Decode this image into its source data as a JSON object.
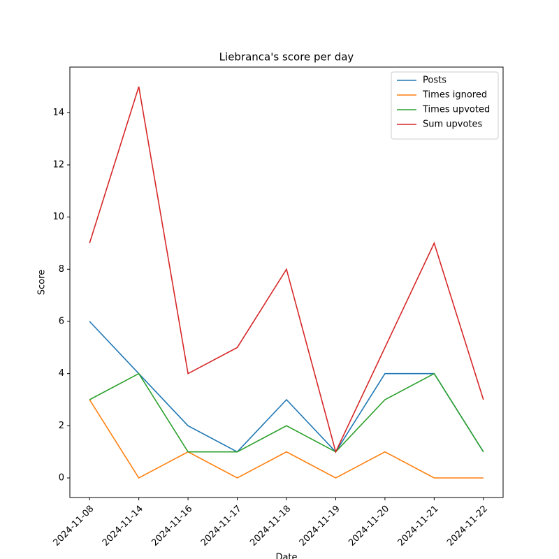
{
  "chart_data": {
    "type": "line",
    "title": "Liebranca's score per day",
    "x_label": "Date",
    "y_label": "Score",
    "categories": [
      "2024-11-08",
      "2024-11-14",
      "2024-11-16",
      "2024-11-17",
      "2024-11-18",
      "2024-11-19",
      "2024-11-20",
      "2024-11-21",
      "2024-11-22"
    ],
    "series": [
      {
        "name": "Posts",
        "color": "#1f77b4",
        "values": [
          6,
          4,
          2,
          1,
          3,
          1,
          4,
          4,
          1
        ]
      },
      {
        "name": "Times ignored",
        "color": "#ff7f0e",
        "values": [
          3,
          0,
          1,
          0,
          1,
          0,
          1,
          0,
          0
        ]
      },
      {
        "name": "Times upvoted",
        "color": "#2ca02c",
        "values": [
          3,
          4,
          1,
          1,
          2,
          1,
          3,
          4,
          1
        ]
      },
      {
        "name": "Sum upvotes",
        "color": "#d62728",
        "values": [
          9,
          15,
          4,
          5,
          8,
          1,
          5,
          9,
          3
        ]
      }
    ],
    "ylim": [
      -0.75,
      15.75
    ],
    "yticks": [
      0,
      2,
      4,
      6,
      8,
      10,
      12,
      14
    ],
    "legend": "upper right",
    "grid": false
  }
}
